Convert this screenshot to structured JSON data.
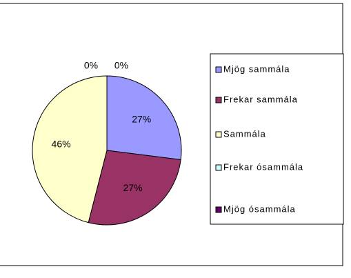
{
  "chart_data": {
    "type": "pie",
    "categories": [
      "Mjög sammála",
      "Frekar sammála",
      "Sammála",
      "Frekar ósammála",
      "Mjög ósammála"
    ],
    "values": [
      27,
      27,
      46,
      0,
      0
    ],
    "value_labels": [
      "27%",
      "27%",
      "46%",
      "0%",
      "0%"
    ],
    "colors": [
      "#9999ff",
      "#993366",
      "#ffffcc",
      "#ccffff",
      "#660066"
    ],
    "legend": "right"
  }
}
